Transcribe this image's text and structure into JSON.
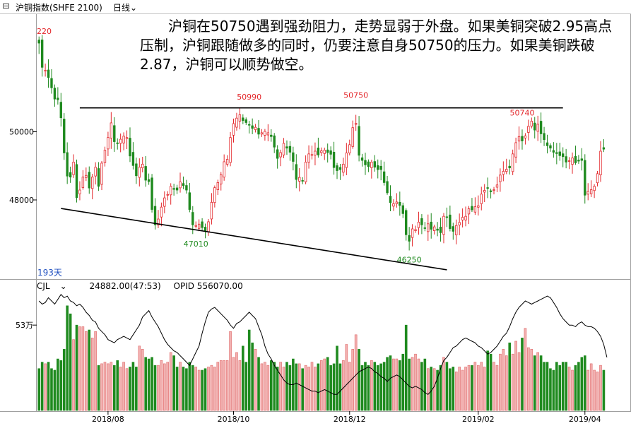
{
  "toolbar": {
    "title": "沪铜指数(SHFE 2100)",
    "period": "日线",
    "period_icon": "chevron-down-icon"
  },
  "annotation": "沪铜在50750遇到强劲阻力，走势显弱于外盘。如果美铜突破2.95高点压制，沪铜跟随做多的同时，仍要注意自身50750的压力。如果美铜跌破2.87，沪铜可以顺势做空。",
  "price_panel": {
    "corner_label": "220",
    "bar_count_label": "193天",
    "ticks": [
      {
        "label": "50000",
        "value": 50000
      },
      {
        "label": "48000",
        "value": 48000
      }
    ],
    "ylim": [
      45700,
      53450
    ],
    "peak_labels": [
      {
        "text": "50990",
        "index": 67
      },
      {
        "text": "50750",
        "index": 101
      },
      {
        "text": "50740",
        "index": 154
      }
    ],
    "trough_labels": [
      {
        "text": "47010",
        "index": 50
      },
      {
        "text": "46250",
        "index": 118
      }
    ],
    "resistance_line": {
      "y": 50700,
      "from_index": 13,
      "to_index": 167
    },
    "support_line": {
      "from_index": 7,
      "from_y": 47750,
      "to_index": 130,
      "to_y": 45950
    },
    "up_color": "#e3262a",
    "down_color": "#1f8a1f"
  },
  "volume_panel": {
    "indicator_label": "CJL",
    "volume_text": "24882.00(47:53)",
    "opid_text": "OPID 556070.00",
    "tick_label": "53万",
    "tick_value": 53
  },
  "x_axis": {
    "labels": [
      {
        "text": "2018/08",
        "index": 22
      },
      {
        "text": "2018/10",
        "index": 62
      },
      {
        "text": "2018/12",
        "index": 99
      },
      {
        "text": "2019/02",
        "index": 140
      },
      {
        "text": "2019/04",
        "index": 174
      }
    ]
  },
  "chart_data": {
    "type": "candlestick",
    "title": "沪铜指数(SHFE 2100) 日线",
    "x_range": [
      "2018/06",
      "2019/04"
    ],
    "ylim": [
      45700,
      53450
    ],
    "closes": [
      52600,
      51890,
      51800,
      51590,
      51290,
      50960,
      50940,
      50410,
      49380,
      48700,
      48670,
      49110,
      48070,
      48290,
      48670,
      48720,
      48350,
      48670,
      48960,
      48400,
      49080,
      49460,
      49830,
      50260,
      49710,
      49660,
      49780,
      49870,
      49830,
      49290,
      49010,
      48710,
      48960,
      49050,
      48580,
      48540,
      47720,
      47270,
      47440,
      47790,
      48060,
      48160,
      48400,
      48310,
      48290,
      48530,
      48420,
      48290,
      47720,
      47270,
      47250,
      47290,
      47190,
      47090,
      47360,
      47930,
      48360,
      48510,
      48740,
      49120,
      49190,
      49830,
      50240,
      50400,
      50500,
      50330,
      50270,
      50200,
      50100,
      50130,
      49930,
      49970,
      50010,
      49970,
      49860,
      49550,
      49220,
      49390,
      49660,
      49520,
      49400,
      49130,
      48600,
      48660,
      48560,
      49110,
      49350,
      49330,
      49430,
      49320,
      49440,
      49460,
      49390,
      49340,
      48950,
      48860,
      48890,
      49050,
      49380,
      49620,
      50120,
      50250,
      49310,
      49160,
      49030,
      48980,
      49110,
      48960,
      48890,
      48890,
      48510,
      48210,
      47920,
      47890,
      47940,
      47840,
      47600,
      46980,
      46790,
      47150,
      47130,
      47350,
      47270,
      47180,
      47300,
      47140,
      47210,
      47110,
      47040,
      47520,
      47490,
      47160,
      47080,
      47250,
      47340,
      47490,
      47520,
      47740,
      47710,
      47800,
      47830,
      48170,
      48280,
      48360,
      48240,
      48300,
      48440,
      48730,
      48840,
      48900,
      48940,
      49350,
      49680,
      49860,
      49730,
      49880,
      50160,
      50310,
      50050,
      50220,
      49940,
      49770,
      49590,
      49520,
      49400,
      49360,
      49300,
      49270,
      49110,
      49150,
      49230,
      49090,
      49140,
      49160,
      48140,
      48250,
      48300,
      48400,
      48770,
      49430,
      49490
    ],
    "volume_unit": "万",
    "volumes": [
      26,
      30,
      29,
      30,
      26,
      25,
      32,
      31,
      38,
      65,
      60,
      44,
      53,
      52,
      52,
      49,
      50,
      45,
      49,
      28,
      29,
      30,
      29,
      30,
      28,
      31,
      27,
      30,
      26,
      27,
      30,
      27,
      40,
      38,
      33,
      32,
      33,
      28,
      28,
      31,
      29,
      30,
      36,
      34,
      27,
      30,
      27,
      26,
      30,
      28,
      27,
      25,
      25,
      26,
      27,
      28,
      27,
      30,
      31,
      31,
      31,
      49,
      33,
      36,
      31,
      40,
      30,
      50,
      42,
      38,
      33,
      29,
      30,
      28,
      31,
      30,
      27,
      30,
      27,
      30,
      28,
      32,
      29,
      29,
      26,
      28,
      27,
      30,
      27,
      29,
      31,
      32,
      33,
      28,
      29,
      40,
      29,
      31,
      41,
      30,
      38,
      47,
      38,
      28,
      30,
      28,
      31,
      30,
      28,
      29,
      30,
      33,
      34,
      32,
      32,
      31,
      35,
      53,
      32,
      33,
      35,
      32,
      30,
      32,
      26,
      27,
      26,
      25,
      28,
      33,
      30,
      26,
      27,
      24,
      27,
      25,
      27,
      28,
      28,
      30,
      28,
      30,
      27,
      37,
      35,
      30,
      28,
      35,
      38,
      34,
      42,
      35,
      43,
      36,
      45,
      51,
      39,
      38,
      34,
      36,
      34,
      30,
      30,
      26,
      25,
      30,
      28,
      30,
      30,
      27,
      25,
      28,
      30,
      33,
      34,
      25,
      29,
      25,
      24,
      28,
      25,
      24
    ],
    "opid_wan": [
      68,
      66,
      67,
      70,
      68,
      66,
      69,
      72,
      70,
      71,
      68,
      67,
      65,
      66,
      64,
      61,
      59,
      56,
      55,
      51,
      49,
      47,
      44,
      43,
      42,
      44,
      45,
      46,
      45,
      44,
      47,
      50,
      53,
      58,
      60,
      62,
      58,
      55,
      52,
      48,
      44,
      41,
      39,
      37,
      36,
      34,
      32,
      30,
      28,
      32,
      36,
      40,
      48,
      55,
      61,
      63,
      64,
      62,
      60,
      58,
      56,
      53,
      51,
      54,
      55,
      57,
      59,
      61,
      59,
      57,
      52,
      47,
      40,
      35,
      32,
      28,
      25,
      22,
      19,
      17,
      16,
      16,
      17,
      16,
      15,
      14,
      13,
      12,
      12,
      11,
      12,
      13,
      12,
      11,
      10,
      10,
      12,
      14,
      16,
      18,
      20,
      22,
      24,
      25,
      26,
      27,
      26,
      24,
      23,
      21,
      20,
      18,
      20,
      21,
      22,
      21,
      19,
      17,
      15,
      14,
      15,
      14,
      13,
      11,
      10,
      12,
      15,
      20,
      26,
      31,
      33,
      36,
      39,
      40,
      42,
      44,
      45,
      44,
      43,
      42,
      40,
      39,
      37,
      35,
      36,
      38,
      40,
      43,
      46,
      48,
      52,
      57,
      61,
      64,
      66,
      68,
      67,
      66,
      67,
      68,
      69,
      70,
      71,
      70,
      67,
      64,
      60,
      57,
      55,
      53,
      53,
      52,
      54,
      55,
      53,
      52,
      52,
      51,
      49,
      46,
      41,
      33
    ]
  }
}
